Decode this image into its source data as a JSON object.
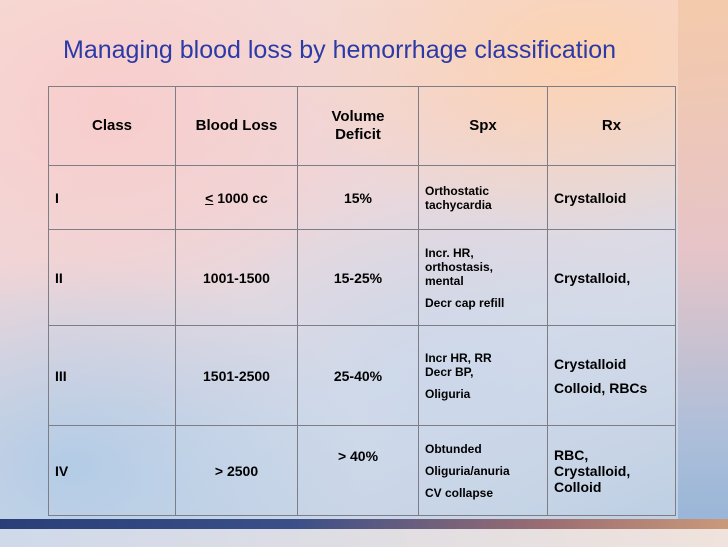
{
  "title": "Managing blood loss by hemorrhage classification",
  "table": {
    "headers": {
      "class": "Class",
      "blood_loss": "Blood Loss",
      "volume_deficit": [
        "Volume",
        "Deficit"
      ],
      "spx": "Spx",
      "rx": "Rx"
    },
    "rows": [
      {
        "class": "I",
        "blood_loss_symbol": "<",
        "blood_loss": "1000 cc",
        "volume_deficit": "15%",
        "spx": [
          "Orthostatic",
          "tachycardia"
        ],
        "rx": [
          "Crystalloid"
        ]
      },
      {
        "class": "II",
        "blood_loss": "1001-1500",
        "volume_deficit": "15-25%",
        "spx": [
          "Incr. HR,",
          "orthostasis,",
          "mental",
          "Decr cap refill"
        ],
        "rx": [
          "Crystalloid,"
        ]
      },
      {
        "class": "III",
        "blood_loss": "1501-2500",
        "volume_deficit": "25-40%",
        "spx": [
          "Incr HR, RR",
          "Decr BP,",
          "Oliguria"
        ],
        "rx": [
          "Crystalloid",
          "Colloid, RBCs"
        ]
      },
      {
        "class": "IV",
        "blood_loss": "> 2500",
        "volume_deficit": "> 40%",
        "spx": [
          "Obtunded",
          "Oliguria/anuria",
          "CV collapse"
        ],
        "rx": [
          "RBC,",
          "Crystalloid,",
          "Colloid"
        ]
      }
    ]
  }
}
